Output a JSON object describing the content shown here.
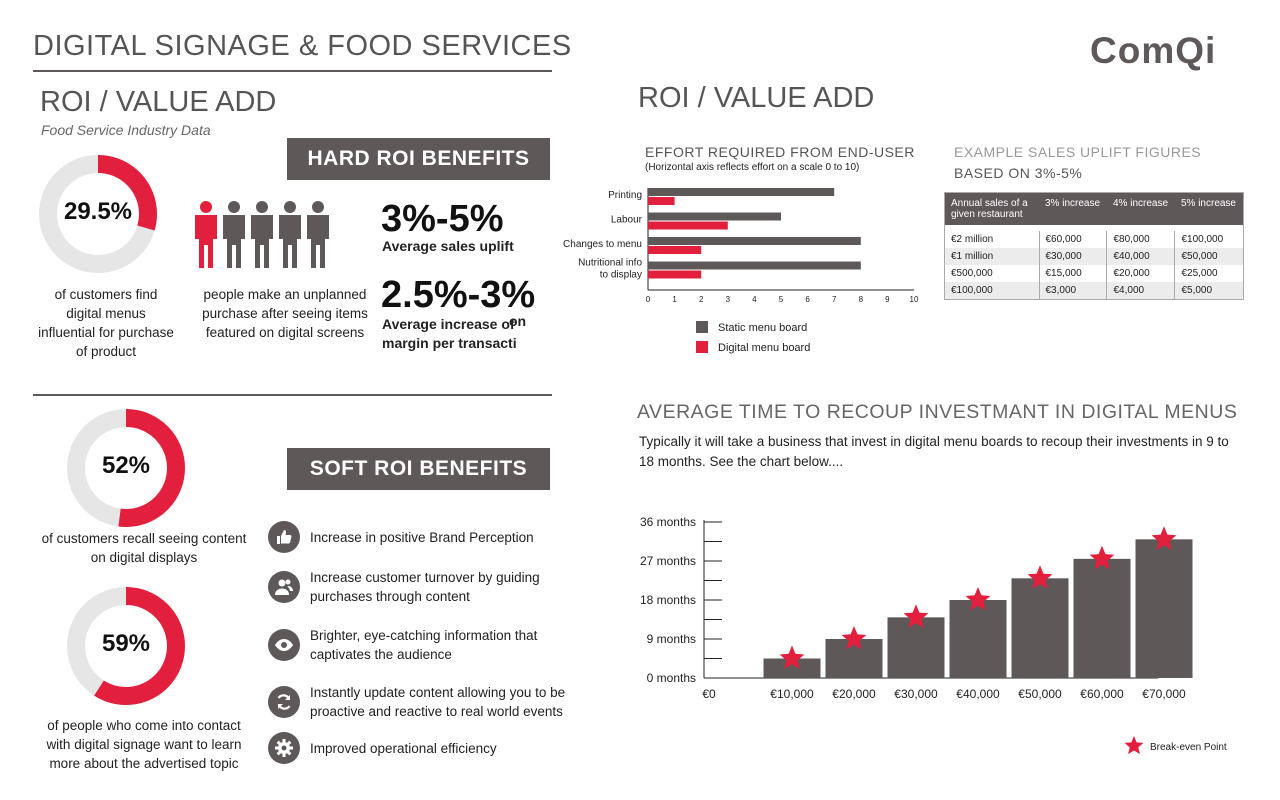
{
  "header": {
    "title": "DIGITAL SIGNAGE & FOOD SERVICES",
    "logo": "ComQi"
  },
  "left": {
    "section_title": "ROI / VALUE ADD",
    "subtitle": "Food Service Industry Data",
    "stat1": {
      "value": "29.5%",
      "fraction": 0.295,
      "caption": "of customers find digital menus influential for purchase of product"
    },
    "people_caption": "people make an unplanned purchase after seeing items featured on digital screens",
    "people_highlighted": 1,
    "people_total": 5,
    "hard_roi": {
      "title": "HARD ROI BENEFITS",
      "fig1": "3%-5%",
      "fig1_label": "Average sales uplift",
      "fig2": "2.5%-3%",
      "fig2_label_1": "Average increase of",
      "fig2_label_2": "on",
      "fig2_label_3": "margin per transacti"
    },
    "stat2": {
      "value": "52%",
      "fraction": 0.52,
      "caption": "of customers recall seeing content on digital displays"
    },
    "stat3": {
      "value": "59%",
      "fraction": 0.59,
      "caption": "of people who come into contact with digital signage want to learn more about the advertised topic"
    },
    "soft_roi": {
      "title": "SOFT ROI BENEFITS",
      "items": [
        {
          "icon": "thumbs-up-icon",
          "text": "Increase in positive Brand Perception"
        },
        {
          "icon": "users-icon",
          "text": "Increase customer turnover by guiding purchases through content"
        },
        {
          "icon": "eye-icon",
          "text": "Brighter, eye-catching information that captivates the audience"
        },
        {
          "icon": "refresh-icon",
          "text": "Instantly update content allowing you to be proactive and reactive to real world events"
        },
        {
          "icon": "gear-icon",
          "text": "Improved operational efficiency"
        }
      ]
    }
  },
  "right": {
    "section_title": "ROI / VALUE ADD",
    "sales_table": {
      "title": "EXAMPLE SALES UPLIFT FIGURES",
      "subtitle": "BASED ON 3%-5%",
      "headers": [
        "Annual sales of a given restaurant",
        "3% increase",
        "4% increase",
        "5% increase"
      ],
      "rows": [
        [
          "€2 million",
          "€60,000",
          "€80,000",
          "€100,000"
        ],
        [
          "€1 million",
          "€30,000",
          "€40,000",
          "€50,000"
        ],
        [
          "€500,000",
          "€15,000",
          "€20,000",
          "€25,000"
        ],
        [
          "€100,000",
          "€3,000",
          "€4,000",
          "€5,000"
        ]
      ]
    },
    "recoup": {
      "title": "AVERAGE TIME TO RECOUP INVESTMANT IN DIGITAL MENUS",
      "text": "Typically it will take a business that invest in digital menu boards to recoup their investments in 9 to 18 months. See the chart below...."
    }
  },
  "colors": {
    "accent": "#e2203d",
    "dark": "#5e5859",
    "light": "#e6e6e6"
  },
  "chart_data": [
    {
      "type": "bar",
      "orientation": "horizontal",
      "title": "EFFORT REQUIRED FROM END-USER",
      "subtitle": "(Horizontal axis reflects effort on a scale 0 to 10)",
      "categories": [
        "Printing",
        "Labour",
        "Changes to menu",
        "Nutritional info to display"
      ],
      "series": [
        {
          "name": "Static menu board",
          "color": "#5e5859",
          "values": [
            7,
            5,
            8,
            8
          ]
        },
        {
          "name": "Digital menu board",
          "color": "#e2203d",
          "values": [
            1,
            3,
            2,
            2
          ]
        }
      ],
      "xlim": [
        0,
        10
      ],
      "xticks": [
        "0",
        "1",
        "2",
        "3",
        "4",
        "5",
        "6",
        "7",
        "8",
        "9",
        "10"
      ],
      "legend": "bottom"
    },
    {
      "type": "bar",
      "title": "",
      "categories": [
        "€0",
        "€10,000",
        "€20,000",
        "€30,000",
        "€40,000",
        "€50,000",
        "€60,000",
        "€70,000"
      ],
      "values": [
        null,
        4.5,
        9,
        14,
        18,
        23,
        27.5,
        32
      ],
      "ylim": [
        0,
        36
      ],
      "yticks": [
        "0 months",
        "9 months",
        "18 months",
        "27 months",
        "36 months"
      ],
      "marker_label": "Break-even Point",
      "legend": "bottom-right"
    }
  ]
}
